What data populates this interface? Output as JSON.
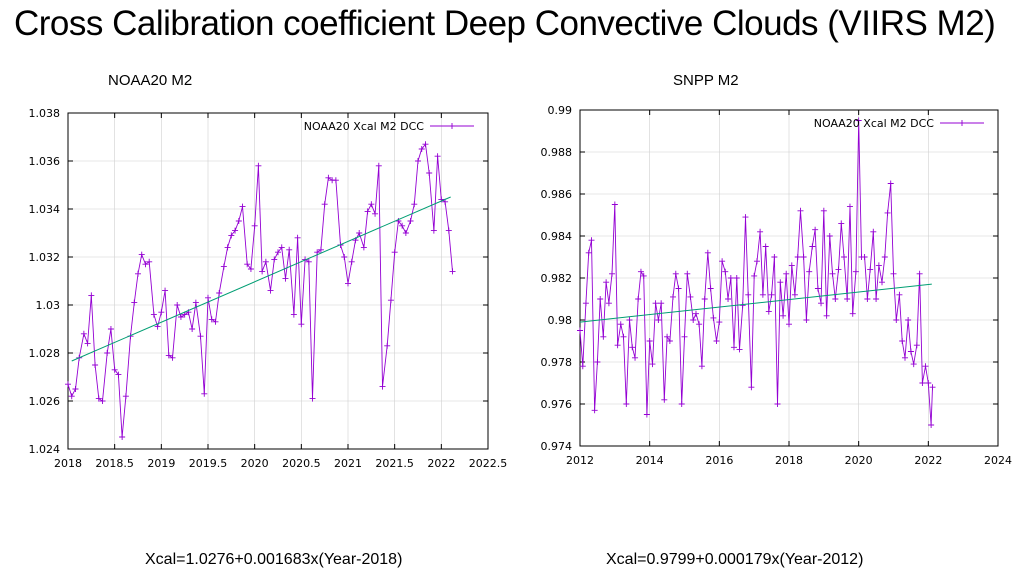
{
  "slide": {
    "title": "Cross Calibration coefficient Deep Convective Clouds (VIIRS M2)",
    "left_label": "NOAA20 M2",
    "right_label": "SNPP M2",
    "left_equation": "Xcal=1.0276+0.001683x(Year-2018)",
    "right_equation": "Xcal=0.9799+0.000179x(Year-2012)"
  },
  "colors": {
    "series": "#9400d3",
    "fit": "#009e73",
    "grid": "#d0d0d0",
    "axis": "#000000"
  },
  "chart_data": [
    {
      "type": "line",
      "legend": "NOAA20 Xcal M2 DCC",
      "legend_position": "top-right",
      "xlim": [
        2018,
        2022.5
      ],
      "ylim": [
        1.024,
        1.038
      ],
      "x_ticks": [
        2018,
        2018.5,
        2019,
        2019.5,
        2020,
        2020.5,
        2021,
        2021.5,
        2022,
        2022.5
      ],
      "x_tick_labels": [
        "2018",
        "2018.5",
        "2019",
        "2019.5",
        "2020",
        "2020.5",
        "2021",
        "2021.5",
        "2022",
        "2022.5"
      ],
      "y_ticks": [
        1.024,
        1.026,
        1.028,
        1.03,
        1.032,
        1.034,
        1.036,
        1.038
      ],
      "y_tick_labels": [
        "1.024",
        "1.026",
        "1.028",
        "1.03",
        "1.032",
        "1.034",
        "1.036",
        "1.038"
      ],
      "grid": true,
      "fit": {
        "intercept": 1.0276,
        "slope": 0.001683,
        "x0": 2018,
        "x_range": [
          2018.04,
          2022.1
        ]
      },
      "series": [
        {
          "name": "NOAA20 Xcal M2 DCC",
          "x": [
            2018.0,
            2018.04,
            2018.08,
            2018.12,
            2018.17,
            2018.21,
            2018.25,
            2018.29,
            2018.33,
            2018.37,
            2018.42,
            2018.46,
            2018.5,
            2018.54,
            2018.58,
            2018.62,
            2018.67,
            2018.71,
            2018.75,
            2018.79,
            2018.83,
            2018.87,
            2018.92,
            2018.96,
            2019.0,
            2019.04,
            2019.08,
            2019.12,
            2019.17,
            2019.21,
            2019.25,
            2019.29,
            2019.33,
            2019.37,
            2019.42,
            2019.46,
            2019.5,
            2019.54,
            2019.58,
            2019.62,
            2019.67,
            2019.71,
            2019.75,
            2019.79,
            2019.83,
            2019.87,
            2019.92,
            2019.96,
            2020.0,
            2020.04,
            2020.08,
            2020.12,
            2020.17,
            2020.21,
            2020.25,
            2020.29,
            2020.33,
            2020.37,
            2020.42,
            2020.46,
            2020.5,
            2020.54,
            2020.58,
            2020.62,
            2020.67,
            2020.71,
            2020.75,
            2020.79,
            2020.83,
            2020.87,
            2020.92,
            2020.96,
            2021.0,
            2021.04,
            2021.08,
            2021.12,
            2021.17,
            2021.21,
            2021.25,
            2021.29,
            2021.33,
            2021.37,
            2021.42,
            2021.46,
            2021.5,
            2021.54,
            2021.58,
            2021.62,
            2021.67,
            2021.71,
            2021.75,
            2021.79,
            2021.83,
            2021.87,
            2021.92,
            2021.96,
            2022.0,
            2022.04,
            2022.08,
            2022.12
          ],
          "y": [
            1.0267,
            1.0262,
            1.0265,
            1.0278,
            1.0288,
            1.0284,
            1.0304,
            1.0275,
            1.0261,
            1.026,
            1.028,
            1.029,
            1.0273,
            1.0271,
            1.0245,
            1.0262,
            1.0287,
            1.0301,
            1.0313,
            1.0321,
            1.0317,
            1.0318,
            1.0296,
            1.0291,
            1.0297,
            1.0306,
            1.0279,
            1.0278,
            1.03,
            1.0295,
            1.0296,
            1.0297,
            1.029,
            1.0301,
            1.0287,
            1.0263,
            1.0303,
            1.0294,
            1.0293,
            1.0305,
            1.0316,
            1.0324,
            1.0329,
            1.0331,
            1.0335,
            1.0341,
            1.0317,
            1.0315,
            1.0333,
            1.0358,
            1.0314,
            1.0318,
            1.0306,
            1.0319,
            1.0322,
            1.0324,
            1.0311,
            1.0323,
            1.0296,
            1.0328,
            1.0292,
            1.0319,
            1.0318,
            1.0261,
            1.0322,
            1.0323,
            1.0342,
            1.0353,
            1.0352,
            1.0352,
            1.0325,
            1.032,
            1.0309,
            1.0318,
            1.0327,
            1.033,
            1.0324,
            1.0339,
            1.0342,
            1.0338,
            1.0358,
            1.0266,
            1.0283,
            1.0302,
            1.0322,
            1.0335,
            1.0333,
            1.033,
            1.0335,
            1.0342,
            1.036,
            1.0365,
            1.0367,
            1.0355,
            1.0331,
            1.0362,
            1.0344,
            1.0343,
            1.0331,
            1.0314
          ]
        }
      ]
    },
    {
      "type": "line",
      "legend": "NOAA20 Xcal M2 DCC",
      "legend_position": "top-right",
      "xlim": [
        2012,
        2024
      ],
      "ylim": [
        0.974,
        0.99
      ],
      "x_ticks": [
        2012,
        2014,
        2016,
        2018,
        2020,
        2022,
        2024
      ],
      "x_tick_labels": [
        "2012",
        "2014",
        "2016",
        "2018",
        "2020",
        "2022",
        "2024"
      ],
      "y_ticks": [
        0.974,
        0.976,
        0.978,
        0.98,
        0.982,
        0.984,
        0.986,
        0.988,
        0.99
      ],
      "y_tick_labels": [
        "0.974",
        "0.976",
        "0.978",
        "0.98",
        "0.982",
        "0.984",
        "0.986",
        "0.988",
        "0.99"
      ],
      "grid": true,
      "fit": {
        "intercept": 0.9799,
        "slope": 0.000179,
        "x0": 2012,
        "x_range": [
          2012.0,
          2022.1
        ]
      },
      "series": [
        {
          "name": "NOAA20 Xcal M2 DCC",
          "x": [
            2012.0,
            2012.08,
            2012.17,
            2012.25,
            2012.33,
            2012.42,
            2012.5,
            2012.58,
            2012.67,
            2012.75,
            2012.83,
            2012.92,
            2013.0,
            2013.08,
            2013.17,
            2013.25,
            2013.33,
            2013.42,
            2013.5,
            2013.58,
            2013.67,
            2013.75,
            2013.83,
            2013.92,
            2014.0,
            2014.08,
            2014.17,
            2014.25,
            2014.33,
            2014.42,
            2014.5,
            2014.58,
            2014.67,
            2014.75,
            2014.83,
            2014.92,
            2015.0,
            2015.08,
            2015.17,
            2015.25,
            2015.33,
            2015.42,
            2015.5,
            2015.58,
            2015.67,
            2015.75,
            2015.83,
            2015.92,
            2016.0,
            2016.08,
            2016.17,
            2016.25,
            2016.33,
            2016.42,
            2016.5,
            2016.58,
            2016.67,
            2016.75,
            2016.83,
            2016.92,
            2017.0,
            2017.08,
            2017.17,
            2017.25,
            2017.33,
            2017.42,
            2017.5,
            2017.58,
            2017.67,
            2017.75,
            2017.83,
            2017.92,
            2018.0,
            2018.08,
            2018.17,
            2018.25,
            2018.33,
            2018.42,
            2018.5,
            2018.58,
            2018.67,
            2018.75,
            2018.83,
            2018.92,
            2019.0,
            2019.08,
            2019.17,
            2019.25,
            2019.33,
            2019.42,
            2019.5,
            2019.58,
            2019.67,
            2019.75,
            2019.83,
            2019.92,
            2020.0,
            2020.08,
            2020.17,
            2020.25,
            2020.33,
            2020.42,
            2020.5,
            2020.58,
            2020.67,
            2020.75,
            2020.83,
            2020.92,
            2021.0,
            2021.08,
            2021.17,
            2021.25,
            2021.33,
            2021.42,
            2021.5,
            2021.58,
            2021.67,
            2021.75,
            2021.83,
            2021.92,
            2022.0,
            2022.08,
            2022.12
          ],
          "y": [
            0.9795,
            0.9778,
            0.9808,
            0.9832,
            0.9838,
            0.9757,
            0.978,
            0.981,
            0.9792,
            0.9818,
            0.9808,
            0.9822,
            0.9855,
            0.9788,
            0.9798,
            0.9792,
            0.976,
            0.98,
            0.9787,
            0.9782,
            0.981,
            0.9823,
            0.9821,
            0.9755,
            0.979,
            0.9779,
            0.9808,
            0.98,
            0.9808,
            0.9762,
            0.9792,
            0.979,
            0.9811,
            0.9822,
            0.9815,
            0.976,
            0.9792,
            0.9822,
            0.9811,
            0.98,
            0.9803,
            0.9798,
            0.9778,
            0.981,
            0.9832,
            0.9815,
            0.9801,
            0.979,
            0.9799,
            0.9828,
            0.9823,
            0.981,
            0.982,
            0.9787,
            0.982,
            0.9786,
            0.9807,
            0.9849,
            0.9812,
            0.9768,
            0.9821,
            0.9828,
            0.9842,
            0.9812,
            0.9835,
            0.9804,
            0.9812,
            0.983,
            0.976,
            0.9818,
            0.9802,
            0.9822,
            0.9798,
            0.9826,
            0.9812,
            0.983,
            0.9852,
            0.983,
            0.98,
            0.9823,
            0.9835,
            0.9843,
            0.9815,
            0.9808,
            0.9852,
            0.9802,
            0.984,
            0.9822,
            0.981,
            0.9824,
            0.9846,
            0.983,
            0.981,
            0.9854,
            0.9803,
            0.9823,
            0.9895,
            0.983,
            0.983,
            0.981,
            0.9824,
            0.9842,
            0.981,
            0.9826,
            0.9818,
            0.983,
            0.9851,
            0.9865,
            0.9822,
            0.98,
            0.9812,
            0.979,
            0.9782,
            0.98,
            0.9785,
            0.9779,
            0.9788,
            0.9822,
            0.977,
            0.9778,
            0.977,
            0.975,
            0.9768
          ]
        }
      ]
    }
  ]
}
